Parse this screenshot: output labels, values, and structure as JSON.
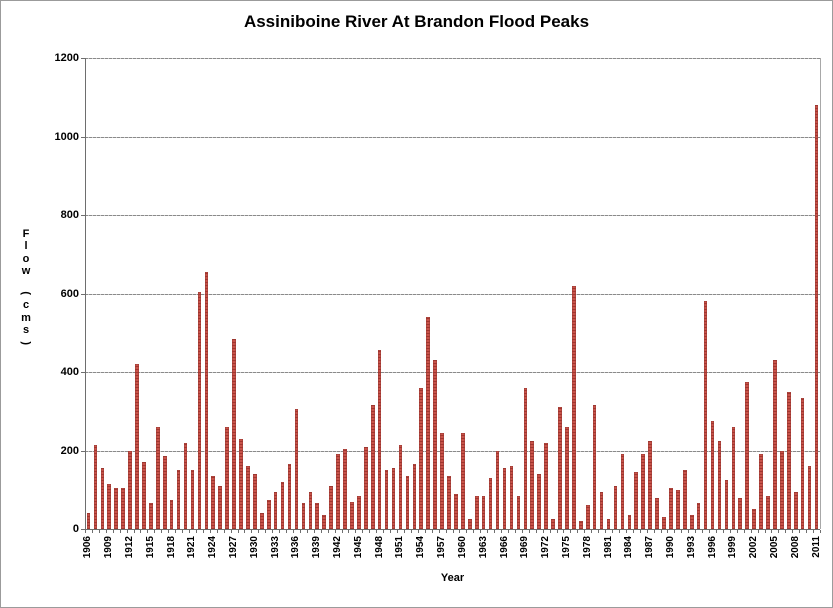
{
  "page": {
    "title": "Assiniboine River At Brandon Flood Peaks"
  },
  "chart_data": {
    "type": "bar",
    "title": "Assiniboine River At Brandon Flood Peaks",
    "xlabel": "Year",
    "ylabel": "Flow (cms)",
    "ylim": [
      0,
      1200
    ],
    "yticks": [
      0,
      200,
      400,
      600,
      800,
      1000,
      1200
    ],
    "xtick_label_interval": 3,
    "grid": "horizontal",
    "legend": "none",
    "bar_color": "#c6483f",
    "categories": [
      1906,
      1907,
      1908,
      1909,
      1910,
      1911,
      1912,
      1913,
      1914,
      1915,
      1916,
      1917,
      1918,
      1919,
      1920,
      1921,
      1922,
      1923,
      1924,
      1925,
      1926,
      1927,
      1928,
      1929,
      1930,
      1931,
      1932,
      1933,
      1934,
      1935,
      1936,
      1937,
      1938,
      1939,
      1940,
      1941,
      1942,
      1943,
      1944,
      1945,
      1946,
      1947,
      1948,
      1949,
      1950,
      1951,
      1952,
      1953,
      1954,
      1955,
      1956,
      1957,
      1958,
      1959,
      1960,
      1961,
      1962,
      1963,
      1964,
      1965,
      1966,
      1967,
      1968,
      1969,
      1970,
      1971,
      1972,
      1973,
      1974,
      1975,
      1976,
      1977,
      1978,
      1979,
      1980,
      1981,
      1982,
      1983,
      1984,
      1985,
      1986,
      1987,
      1988,
      1989,
      1990,
      1991,
      1992,
      1993,
      1994,
      1995,
      1996,
      1997,
      1998,
      1999,
      2000,
      2001,
      2002,
      2003,
      2004,
      2005,
      2006,
      2007,
      2008,
      2009,
      2010,
      2011
    ],
    "values": [
      40,
      215,
      155,
      115,
      105,
      105,
      200,
      420,
      170,
      65,
      260,
      185,
      75,
      150,
      220,
      150,
      605,
      655,
      135,
      110,
      260,
      485,
      230,
      160,
      140,
      40,
      75,
      95,
      120,
      165,
      305,
      65,
      95,
      65,
      35,
      110,
      190,
      205,
      70,
      85,
      210,
      315,
      455,
      150,
      155,
      215,
      135,
      165,
      360,
      540,
      430,
      245,
      135,
      90,
      245,
      25,
      85,
      85,
      130,
      200,
      155,
      160,
      85,
      360,
      225,
      140,
      220,
      25,
      310,
      260,
      620,
      20,
      60,
      315,
      95,
      25,
      110,
      190,
      35,
      145,
      190,
      225,
      80,
      30,
      105,
      100,
      150,
      35,
      65,
      580,
      275,
      225,
      125,
      260,
      80,
      375,
      50,
      190,
      85,
      430,
      200,
      350,
      95,
      335,
      160,
      1080
    ]
  },
  "style": {
    "grid_color": "#a0a0a0",
    "axis_color": "#6e6e6e",
    "text_color": "#000000"
  }
}
